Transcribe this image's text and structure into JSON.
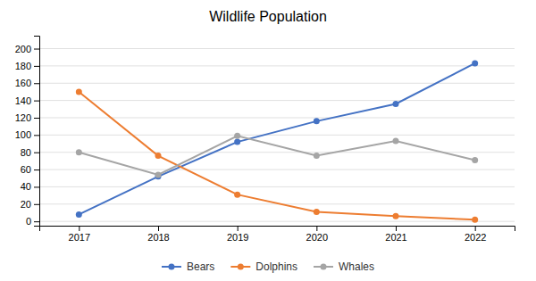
{
  "chart_data": {
    "type": "line",
    "title": "Wildlife Population",
    "x": [
      2017,
      2018,
      2019,
      2020,
      2021,
      2022
    ],
    "series": [
      {
        "name": "Bears",
        "color": "#4472C4",
        "marker": "circle",
        "values": [
          8,
          52,
          92,
          116,
          136,
          183
        ]
      },
      {
        "name": "Dolphins",
        "color": "#ED7D31",
        "marker": "circle",
        "values": [
          150,
          76,
          31,
          11,
          6,
          2
        ]
      },
      {
        "name": "Whales",
        "color": "#A5A5A5",
        "marker": "circle",
        "values": [
          80,
          54,
          99,
          76,
          93,
          71
        ]
      }
    ],
    "xlim": [
      2016.5,
      2022.5
    ],
    "xticks": [
      2017,
      2018,
      2019,
      2020,
      2021,
      2022
    ],
    "ylim": [
      -5,
      215
    ],
    "yticks": [
      0,
      20,
      40,
      60,
      80,
      100,
      120,
      140,
      160,
      180,
      200
    ],
    "grid": true,
    "legend": "bottom"
  }
}
